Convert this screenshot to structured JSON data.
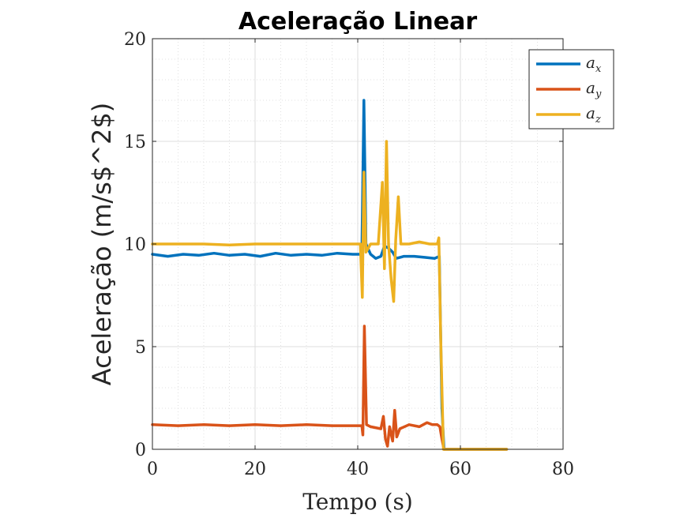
{
  "chart_data": {
    "type": "line",
    "title": "Aceleração Linear",
    "xlabel": "Tempo (s)",
    "ylabel": "Aceleração (m/s$^2$)",
    "xlim": [
      0,
      80
    ],
    "ylim": [
      0,
      20
    ],
    "xticks": [
      0,
      20,
      40,
      60,
      80
    ],
    "yticks": [
      0,
      5,
      10,
      15,
      20
    ],
    "grid": true,
    "minor_grid": true,
    "legend_position": "top-right",
    "series": [
      {
        "name": "a_x",
        "legend_main": "a",
        "legend_sub": "x",
        "color": "#0072BD",
        "points": [
          [
            0,
            9.5
          ],
          [
            3,
            9.4
          ],
          [
            6,
            9.5
          ],
          [
            9,
            9.45
          ],
          [
            12,
            9.55
          ],
          [
            15,
            9.45
          ],
          [
            18,
            9.5
          ],
          [
            21,
            9.4
          ],
          [
            24,
            9.55
          ],
          [
            27,
            9.45
          ],
          [
            30,
            9.5
          ],
          [
            33,
            9.45
          ],
          [
            36,
            9.55
          ],
          [
            39,
            9.5
          ],
          [
            40.8,
            9.5
          ],
          [
            41.2,
            17.0
          ],
          [
            41.6,
            10.0
          ],
          [
            42.5,
            9.5
          ],
          [
            43.5,
            9.3
          ],
          [
            44.5,
            9.4
          ],
          [
            45.2,
            9.9
          ],
          [
            46,
            9.8
          ],
          [
            46.8,
            9.6
          ],
          [
            47.5,
            9.3
          ],
          [
            49,
            9.4
          ],
          [
            51,
            9.4
          ],
          [
            53,
            9.35
          ],
          [
            55,
            9.3
          ],
          [
            55.9,
            9.4
          ],
          [
            56.4,
            2.0
          ],
          [
            56.8,
            0
          ],
          [
            60,
            0
          ],
          [
            65,
            0
          ],
          [
            69,
            0
          ]
        ]
      },
      {
        "name": "a_y",
        "legend_main": "a",
        "legend_sub": "y",
        "color": "#D95319",
        "points": [
          [
            0,
            1.2
          ],
          [
            5,
            1.15
          ],
          [
            10,
            1.2
          ],
          [
            15,
            1.15
          ],
          [
            20,
            1.2
          ],
          [
            25,
            1.15
          ],
          [
            30,
            1.2
          ],
          [
            35,
            1.15
          ],
          [
            40.8,
            1.15
          ],
          [
            41.0,
            0.7
          ],
          [
            41.3,
            6.0
          ],
          [
            41.7,
            1.2
          ],
          [
            42.5,
            1.1
          ],
          [
            44.5,
            1.0
          ],
          [
            45.0,
            1.6
          ],
          [
            45.4,
            0.5
          ],
          [
            45.8,
            0.15
          ],
          [
            46.2,
            1.1
          ],
          [
            46.8,
            0.4
          ],
          [
            47.2,
            1.9
          ],
          [
            47.6,
            0.6
          ],
          [
            48.2,
            1.0
          ],
          [
            50,
            1.2
          ],
          [
            52,
            1.1
          ],
          [
            53.5,
            1.3
          ],
          [
            54.5,
            1.2
          ],
          [
            55.5,
            1.2
          ],
          [
            56.0,
            1.1
          ],
          [
            56.4,
            0.5
          ],
          [
            56.8,
            0
          ],
          [
            60,
            0
          ],
          [
            65,
            0
          ],
          [
            69,
            0
          ]
        ]
      },
      {
        "name": "a_z",
        "legend_main": "a",
        "legend_sub": "z",
        "color": "#EDB120",
        "points": [
          [
            0,
            10.0
          ],
          [
            5,
            10.0
          ],
          [
            10,
            10.0
          ],
          [
            15,
            9.95
          ],
          [
            20,
            10.0
          ],
          [
            25,
            10.0
          ],
          [
            30,
            10.0
          ],
          [
            35,
            10.0
          ],
          [
            40.5,
            10.0
          ],
          [
            40.9,
            7.4
          ],
          [
            41.2,
            13.5
          ],
          [
            41.6,
            9.6
          ],
          [
            42.5,
            10.0
          ],
          [
            44,
            10.0
          ],
          [
            44.8,
            13.0
          ],
          [
            45.2,
            8.8
          ],
          [
            45.6,
            15.0
          ],
          [
            46.0,
            10.0
          ],
          [
            46.5,
            8.3
          ],
          [
            47.0,
            7.2
          ],
          [
            47.4,
            10.2
          ],
          [
            47.9,
            12.3
          ],
          [
            48.4,
            10.0
          ],
          [
            50,
            10.0
          ],
          [
            52,
            10.1
          ],
          [
            54,
            10.0
          ],
          [
            55.5,
            10.0
          ],
          [
            55.8,
            10.3
          ],
          [
            56.2,
            5.0
          ],
          [
            56.7,
            0
          ],
          [
            60,
            0
          ],
          [
            65,
            0
          ],
          [
            69,
            0
          ]
        ]
      }
    ]
  }
}
